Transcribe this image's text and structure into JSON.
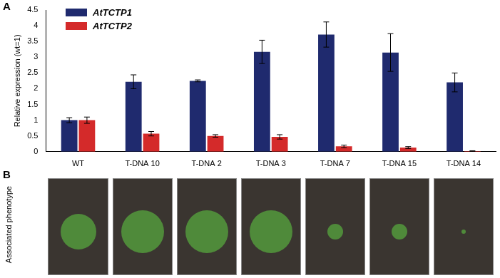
{
  "panel_a": "A",
  "chart_data": {
    "type": "bar",
    "y_label": "Relative expression (wt=1)",
    "categories": [
      "WT",
      "T-DNA 10",
      "T-DNA 2",
      "T-DNA 3",
      "T-DNA 7",
      "T-DNA 15",
      "T-DNA 14"
    ],
    "series": [
      {
        "name": "AtTCTP1",
        "color": "#1f2a6e",
        "values": [
          1.0,
          2.22,
          2.25,
          3.17,
          3.72,
          3.15,
          2.2
        ],
        "errors": [
          0.08,
          0.22,
          0.03,
          0.37,
          0.4,
          0.6,
          0.3
        ]
      },
      {
        "name": "AtTCTP2",
        "color": "#d42a2a",
        "values": [
          1.0,
          0.57,
          0.5,
          0.47,
          0.17,
          0.13,
          0.02
        ],
        "errors": [
          0.1,
          0.07,
          0.04,
          0.07,
          0.04,
          0.03,
          0.01
        ]
      }
    ],
    "ylim": [
      0,
      4.5
    ],
    "yticks": [
      0,
      0.5,
      1,
      1.5,
      2,
      2.5,
      3,
      3.5,
      4,
      4.5
    ],
    "grid": false,
    "legend": "upper left"
  },
  "panel_b": {
    "label": "B",
    "caption": "Associated phenotype"
  }
}
